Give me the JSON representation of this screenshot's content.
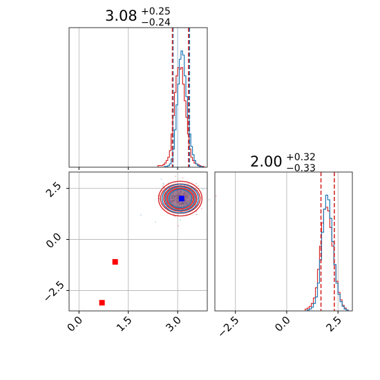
{
  "chart_data": [
    {
      "type": "histogram",
      "panel": "top-left",
      "title": {
        "main": "3.08",
        "sup": "+0.25",
        "sub": "−0.24"
      },
      "xlim": [
        -0.3,
        3.9
      ],
      "x_ticks": [
        0.0,
        1.5,
        3.0
      ],
      "x_tick_labels_shown": false,
      "grid": true,
      "series": [
        {
          "name": "",
          "color": "#1f77b4",
          "bins": [
            2.6,
            2.65,
            2.7,
            2.75,
            2.8,
            2.85,
            2.9,
            2.95,
            3.0,
            3.05,
            3.1,
            3.15,
            3.2,
            3.25,
            3.3,
            3.35,
            3.4,
            3.45,
            3.5,
            3.55,
            3.6,
            3.65,
            3.7,
            3.75,
            3.8
          ],
          "counts": [
            1,
            1,
            2,
            4,
            10,
            22,
            45,
            75,
            100,
            130,
            140,
            135,
            110,
            85,
            60,
            40,
            25,
            15,
            8,
            4,
            2,
            1,
            1,
            0
          ]
        },
        {
          "name": "",
          "color": "#d62728",
          "bins": [
            2.4,
            2.45,
            2.5,
            2.55,
            2.6,
            2.65,
            2.7,
            2.75,
            2.8,
            2.85,
            2.9,
            2.95,
            3.0,
            3.05,
            3.1,
            3.15,
            3.2,
            3.25,
            3.3,
            3.35,
            3.4,
            3.45,
            3.5,
            3.55,
            3.6,
            3.65,
            3.7,
            3.75,
            3.8
          ],
          "counts": [
            2,
            2,
            2,
            3,
            5,
            8,
            12,
            20,
            40,
            62,
            90,
            110,
            120,
            118,
            120,
            100,
            80,
            60,
            40,
            22,
            12,
            8,
            5,
            4,
            3,
            2,
            1,
            1
          ]
        }
      ],
      "quantile_lines": [
        {
          "color": "#1f77b4",
          "x": [
            2.86,
            3.36
          ]
        },
        {
          "color": "#d62728",
          "x": [
            2.84,
            3.33
          ]
        }
      ],
      "truth_line": 3.0
    },
    {
      "type": "scatter",
      "panel": "bottom-left",
      "xlim": [
        -0.3,
        3.9
      ],
      "ylim": [
        -3.5,
        3.3
      ],
      "x_ticks": [
        0.0,
        1.5,
        3.0
      ],
      "x_tick_labels": [
        "0.0",
        "1.5",
        "3.0"
      ],
      "y_ticks": [
        -2.5,
        0.0,
        2.5
      ],
      "y_tick_labels": [
        "−2.5",
        "0.0",
        "2.5"
      ],
      "grid": true,
      "density_center": [
        3.08,
        2.0
      ],
      "points": [
        {
          "x": 3.12,
          "y": 2.0,
          "color": "#0000ff",
          "marker": "square"
        },
        {
          "x": 1.1,
          "y": -1.1,
          "color": "#ff0000",
          "marker": "square"
        },
        {
          "x": 0.7,
          "y": -3.1,
          "color": "#ff0000",
          "marker": "square"
        }
      ],
      "contours": [
        {
          "color": "#d62728",
          "rx": [
            0.66,
            0.6,
            0.5,
            0.4
          ],
          "ry": [
            0.85,
            0.72,
            0.62,
            0.5
          ]
        },
        {
          "color": "#1f77b4",
          "rx": [
            0.55,
            0.45,
            0.35
          ],
          "ry": [
            0.7,
            0.58,
            0.45
          ]
        }
      ]
    },
    {
      "type": "histogram",
      "panel": "bottom-right",
      "title": {
        "main": "2.00",
        "sup": "+0.32",
        "sub": "−0.33"
      },
      "xlim": [
        -3.5,
        3.2
      ],
      "x_ticks": [
        -2.5,
        0.0,
        2.5
      ],
      "x_tick_labels": [
        "−2.5",
        "0.0",
        "2.5"
      ],
      "grid": true,
      "series": [
        {
          "name": "",
          "color": "#1f77b4",
          "bins": [
            1.0,
            1.1,
            1.2,
            1.3,
            1.4,
            1.5,
            1.6,
            1.7,
            1.8,
            1.9,
            2.0,
            2.1,
            2.2,
            2.3,
            2.4,
            2.5,
            2.6,
            2.7,
            2.8,
            2.9,
            3.0
          ],
          "counts": [
            1,
            2,
            4,
            8,
            15,
            30,
            55,
            85,
            110,
            125,
            120,
            100,
            75,
            50,
            30,
            18,
            10,
            5,
            2,
            1
          ]
        },
        {
          "name": "",
          "color": "#d62728",
          "bins": [
            0.9,
            1.0,
            1.1,
            1.2,
            1.3,
            1.4,
            1.5,
            1.6,
            1.7,
            1.8,
            1.9,
            2.0,
            2.1,
            2.2,
            2.3,
            2.4,
            2.5,
            2.6,
            2.7,
            2.8,
            2.9,
            3.0
          ],
          "counts": [
            2,
            3,
            5,
            8,
            14,
            25,
            45,
            70,
            95,
            110,
            112,
            108,
            90,
            70,
            50,
            32,
            20,
            12,
            6,
            3,
            1
          ]
        }
      ],
      "quantile_lines": [
        {
          "color": "#d62728",
          "x": [
            1.67,
            2.32
          ]
        }
      ]
    }
  ]
}
